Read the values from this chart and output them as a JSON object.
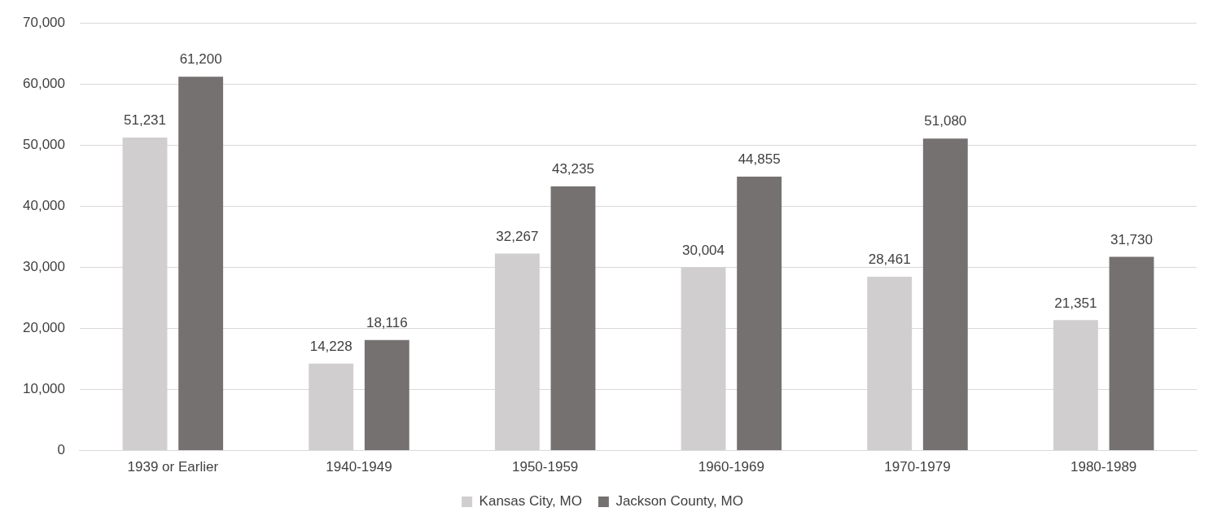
{
  "chart_data": {
    "type": "bar",
    "categories": [
      "1939 or Earlier",
      "1940-1949",
      "1950-1959",
      "1960-1969",
      "1970-1979",
      "1980-1989"
    ],
    "series": [
      {
        "name": "Kansas City, MO",
        "color": "#d0cece",
        "values": [
          51231,
          14228,
          32267,
          30004,
          28461,
          21351
        ],
        "value_labels": [
          "51,231",
          "14,228",
          "32,267",
          "30,004",
          "28,461",
          "21,351"
        ]
      },
      {
        "name": "Jackson County, MO",
        "color": "#767171",
        "values": [
          61200,
          18116,
          43235,
          44855,
          51080,
          31730
        ],
        "value_labels": [
          "61,200",
          "18,116",
          "43,235",
          "44,855",
          "51,080",
          "31,730"
        ]
      }
    ],
    "ylim": [
      0,
      70000
    ],
    "yticks": [
      {
        "value": 0,
        "label": "0"
      },
      {
        "value": 10000,
        "label": "10,000"
      },
      {
        "value": 20000,
        "label": "20,000"
      },
      {
        "value": 30000,
        "label": "30,000"
      },
      {
        "value": 40000,
        "label": "40,000"
      },
      {
        "value": 50000,
        "label": "50,000"
      },
      {
        "value": 60000,
        "label": "60,000"
      },
      {
        "value": 70000,
        "label": "70,000"
      }
    ],
    "grid": "y",
    "legend": "bottom"
  }
}
